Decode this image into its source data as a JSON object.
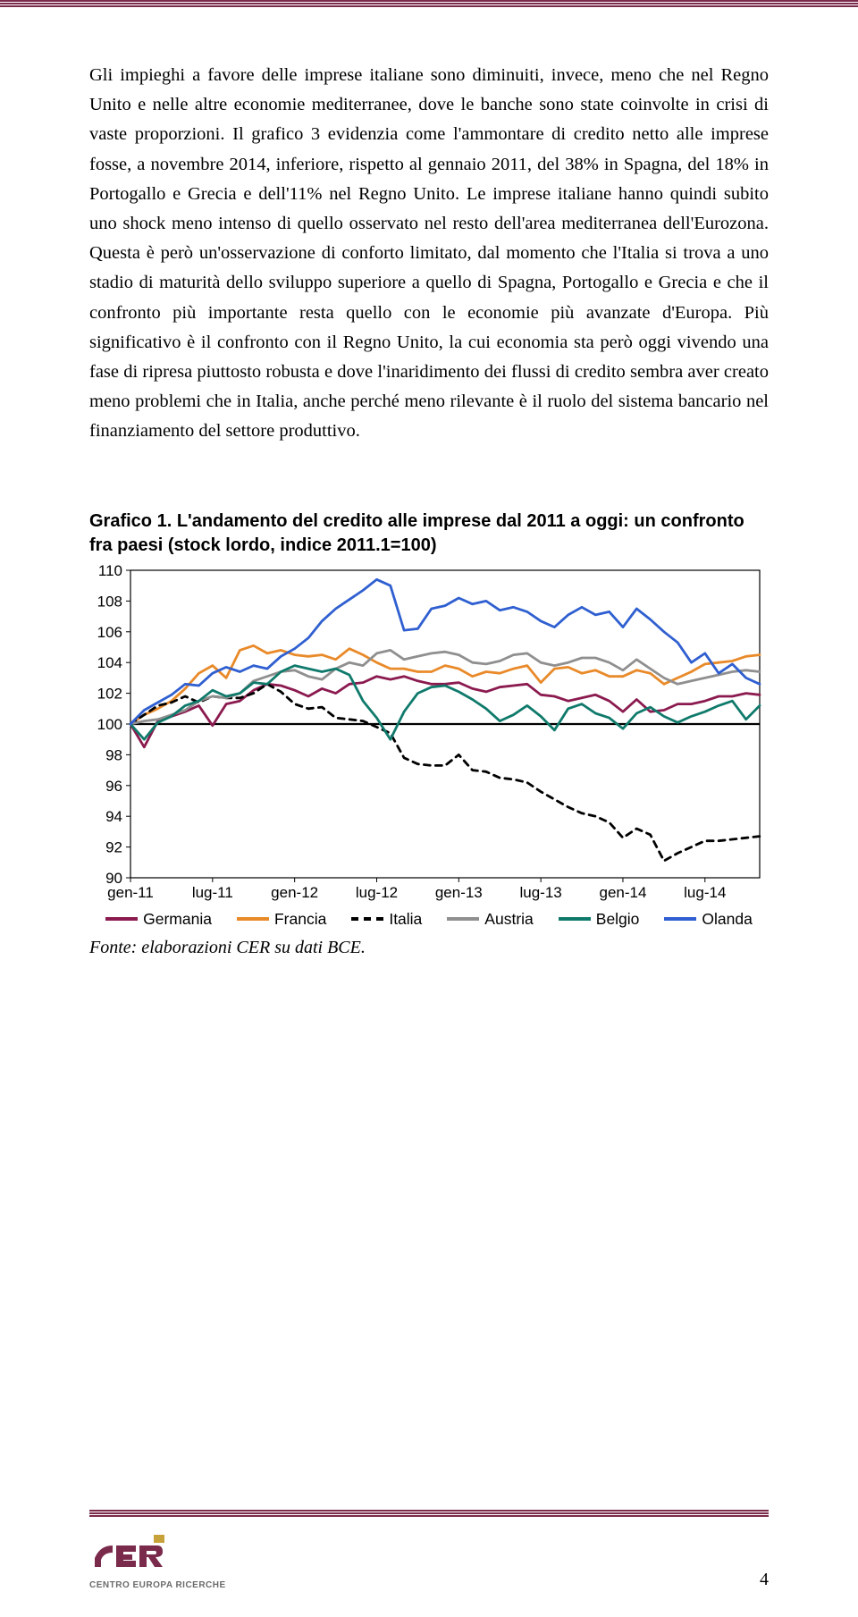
{
  "rule_color": "#7a2a4a",
  "body_text": "Gli impieghi a favore delle imprese italiane sono diminuiti, invece, meno che nel Regno Unito e nelle altre economie mediterranee, dove le banche sono state coinvolte in crisi di vaste proporzioni. Il grafico 3 evidenzia come l'ammontare di credito netto alle imprese fosse, a novembre 2014, inferiore, rispetto al gennaio 2011, del 38% in Spagna, del 18% in Portogallo e Grecia e dell'11% nel Regno Unito. Le imprese italiane hanno quindi subito uno shock meno intenso di quello osservato nel resto dell'area mediterranea dell'Eurozona. Questa è però un'osservazione di conforto limitato, dal momento che l'Italia si trova a uno stadio di maturità dello sviluppo superiore a quello di Spagna, Portogallo e Grecia e che il confronto più importante resta quello con le economie più avanzate d'Europa. Più significativo è il confronto con il Regno Unito, la cui economia sta però oggi vivendo una fase di ripresa piuttosto robusta e dove l'inaridimento dei flussi di credito sembra aver creato meno problemi che in Italia, anche perché meno rilevante è il ruolo del sistema bancario nel finanziamento del settore produttivo.",
  "chart": {
    "title": "Grafico 1. L'andamento del credito alle imprese dal 2011 a oggi: un confronto fra paesi (stock lordo, indice 2011.1=100)",
    "type": "line",
    "ylim": [
      90,
      110
    ],
    "ytick_step": 2,
    "yticks": [
      90,
      92,
      94,
      96,
      98,
      100,
      102,
      104,
      106,
      108,
      110
    ],
    "x_labels": [
      "gen-11",
      "lug-11",
      "gen-12",
      "lug-12",
      "gen-13",
      "lug-13",
      "gen-14",
      "lug-14"
    ],
    "x_positions": [
      0,
      6,
      12,
      18,
      24,
      30,
      36,
      42
    ],
    "x_max": 46,
    "plot_background": "#ffffff",
    "border_color": "#000000",
    "baseline_y": 100,
    "line_width": 2.8,
    "series": [
      {
        "name": "Germania",
        "color": "#8b1a4f",
        "dash": "",
        "data": [
          100,
          98.5,
          100.2,
          100.5,
          100.8,
          101.2,
          99.9,
          101.3,
          101.5,
          102.2,
          102.6,
          102.5,
          102.2,
          101.8,
          102.3,
          102.0,
          102.6,
          102.7,
          103.1,
          102.9,
          103.1,
          102.8,
          102.6,
          102.6,
          102.7,
          102.3,
          102.1,
          102.4,
          102.5,
          102.6,
          101.9,
          101.8,
          101.5,
          101.7,
          101.9,
          101.5,
          100.8,
          101.6,
          100.8,
          100.9,
          101.3,
          101.3,
          101.5,
          101.8,
          101.8,
          102.0,
          101.9
        ]
      },
      {
        "name": "Francia",
        "color": "#e98a2a",
        "dash": "",
        "data": [
          100,
          100.6,
          101.0,
          101.5,
          102.3,
          103.3,
          103.8,
          103.0,
          104.8,
          105.1,
          104.6,
          104.8,
          104.5,
          104.4,
          104.5,
          104.2,
          104.9,
          104.5,
          104.0,
          103.6,
          103.6,
          103.4,
          103.4,
          103.8,
          103.6,
          103.1,
          103.4,
          103.3,
          103.6,
          103.8,
          102.7,
          103.6,
          103.7,
          103.3,
          103.5,
          103.1,
          103.1,
          103.5,
          103.3,
          102.6,
          103.0,
          103.4,
          103.9,
          104.0,
          104.1,
          104.4,
          104.5
        ]
      },
      {
        "name": "Italia",
        "color": "#000000",
        "dash": "7,6",
        "data": [
          100,
          100.6,
          101.2,
          101.4,
          101.8,
          101.4,
          101.8,
          101.7,
          101.7,
          102.0,
          102.6,
          102.1,
          101.3,
          101.0,
          101.1,
          100.4,
          100.3,
          100.2,
          99.8,
          99.4,
          97.8,
          97.4,
          97.3,
          97.3,
          98.0,
          97.0,
          96.9,
          96.5,
          96.4,
          96.2,
          95.6,
          95.1,
          94.6,
          94.2,
          94.0,
          93.6,
          92.6,
          93.2,
          92.8,
          91.1,
          91.6,
          92.0,
          92.4,
          92.4,
          92.5,
          92.6,
          92.7
        ]
      },
      {
        "name": "Austria",
        "color": "#8f8f8f",
        "dash": "",
        "data": [
          100,
          100.2,
          100.3,
          100.6,
          100.9,
          101.5,
          101.8,
          101.7,
          102.0,
          102.8,
          103.1,
          103.4,
          103.5,
          103.1,
          102.9,
          103.6,
          104.0,
          103.8,
          104.6,
          104.8,
          104.2,
          104.4,
          104.6,
          104.7,
          104.5,
          104.0,
          103.9,
          104.1,
          104.5,
          104.6,
          104.0,
          103.8,
          104.0,
          104.3,
          104.3,
          104.0,
          103.5,
          104.2,
          103.6,
          103.0,
          102.6,
          102.8,
          103.0,
          103.2,
          103.4,
          103.5,
          103.4
        ]
      },
      {
        "name": "Belgio",
        "color": "#0f7a6b",
        "dash": "",
        "data": [
          100,
          99.0,
          100.1,
          100.5,
          101.2,
          101.5,
          102.2,
          101.8,
          102.0,
          102.7,
          102.6,
          103.4,
          103.8,
          103.6,
          103.4,
          103.6,
          103.2,
          101.5,
          100.4,
          99.0,
          100.8,
          102.0,
          102.4,
          102.5,
          102.1,
          101.6,
          101.0,
          100.2,
          100.6,
          101.2,
          100.5,
          99.6,
          101.0,
          101.3,
          100.7,
          100.4,
          99.7,
          100.7,
          101.1,
          100.5,
          100.1,
          100.5,
          100.8,
          101.2,
          101.5,
          100.3,
          101.2
        ]
      },
      {
        "name": "Olanda",
        "color": "#2f5fd0",
        "dash": "",
        "data": [
          100,
          100.9,
          101.4,
          101.9,
          102.6,
          102.5,
          103.3,
          103.7,
          103.4,
          103.8,
          103.6,
          104.4,
          104.9,
          105.6,
          106.7,
          107.5,
          108.1,
          108.7,
          109.4,
          109.0,
          106.1,
          106.2,
          107.5,
          107.7,
          108.2,
          107.8,
          108.0,
          107.4,
          107.6,
          107.3,
          106.7,
          106.3,
          107.1,
          107.6,
          107.1,
          107.3,
          106.3,
          107.5,
          106.8,
          106.0,
          105.3,
          104.0,
          104.6,
          103.3,
          103.9,
          103.0,
          102.6
        ]
      }
    ],
    "legend_labels": {
      "Germania": "Germania",
      "Francia": "Francia",
      "Italia": "Italia",
      "Austria": "Austria",
      "Belgio": "Belgio",
      "Olanda": "Olanda"
    }
  },
  "source_note": "Fonte: elaborazioni CER su dati BCE.",
  "logo": {
    "text": "CER",
    "subtitle": "CENTRO EUROPA RICERCHE"
  },
  "page_number": "4"
}
